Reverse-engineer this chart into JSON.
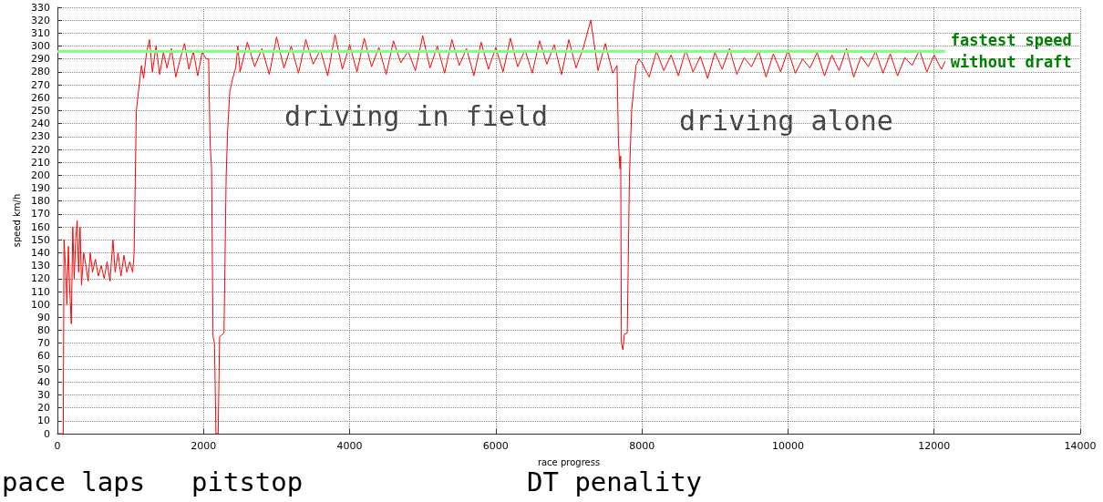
{
  "chart_data": {
    "type": "line",
    "xlabel": "race progress",
    "ylabel": "speed km/h",
    "x": [
      0,
      80,
      90,
      110,
      130,
      150,
      170,
      190,
      210,
      230,
      250,
      270,
      290,
      310,
      330,
      360,
      390,
      420,
      450,
      480,
      520,
      560,
      600,
      640,
      680,
      720,
      760,
      790,
      830,
      870,
      910,
      950,
      990,
      1030,
      1050,
      1080,
      1110,
      1150,
      1180,
      1220,
      1260,
      1300,
      1350,
      1400,
      1450,
      1500,
      1560,
      1620,
      1680,
      1740,
      1800,
      1860,
      1920,
      1980,
      2040,
      2070,
      2090,
      2110,
      2130,
      2150,
      2170,
      2200,
      2220,
      2280,
      2310,
      2330,
      2360,
      2400,
      2440,
      2470,
      2500,
      2600,
      2700,
      2800,
      2900,
      3000,
      3100,
      3200,
      3300,
      3400,
      3500,
      3600,
      3700,
      3800,
      3900,
      4000,
      4100,
      4200,
      4300,
      4400,
      4500,
      4600,
      4700,
      4800,
      4900,
      5000,
      5100,
      5200,
      5300,
      5400,
      5500,
      5600,
      5700,
      5800,
      5900,
      6000,
      6100,
      6200,
      6300,
      6400,
      6500,
      6600,
      6700,
      6800,
      6900,
      7000,
      7100,
      7200,
      7300,
      7400,
      7500,
      7600,
      7660,
      7680,
      7700,
      7710,
      7720,
      7740,
      7760,
      7800,
      7830,
      7860,
      7890,
      7920,
      7960,
      8000,
      8100,
      8200,
      8300,
      8400,
      8500,
      8600,
      8700,
      8800,
      8900,
      9000,
      9100,
      9200,
      9300,
      9400,
      9500,
      9600,
      9700,
      9800,
      9900,
      10000,
      10100,
      10200,
      10300,
      10400,
      10500,
      10600,
      10700,
      10800,
      10900,
      11000,
      11100,
      11200,
      11300,
      11400,
      11500,
      11600,
      11700,
      11800,
      11900,
      12000,
      12100,
      12150
    ],
    "series": [
      {
        "color": "#ff0000",
        "values": [
          0,
          0,
          150,
          130,
          100,
          145,
          110,
          85,
          160,
          120,
          150,
          165,
          125,
          160,
          115,
          140,
          130,
          118,
          140,
          125,
          135,
          122,
          130,
          120,
          133,
          118,
          150,
          125,
          140,
          122,
          138,
          125,
          133,
          125,
          140,
          250,
          265,
          285,
          275,
          295,
          305,
          280,
          300,
          278,
          295,
          283,
          298,
          276,
          290,
          302,
          282,
          296,
          277,
          295,
          290,
          290,
          225,
          205,
          75,
          70,
          0,
          0,
          75,
          78,
          200,
          235,
          265,
          275,
          283,
          300,
          280,
          303,
          284,
          298,
          278,
          307,
          283,
          300,
          279,
          305,
          286,
          297,
          277,
          309,
          282,
          301,
          280,
          306,
          284,
          299,
          278,
          304,
          287,
          296,
          281,
          308,
          283,
          300,
          279,
          305,
          285,
          298,
          277,
          303,
          282,
          299,
          280,
          306,
          284,
          297,
          279,
          304,
          286,
          301,
          278,
          305,
          283,
          299,
          320,
          281,
          302,
          279,
          285,
          225,
          205,
          215,
          70,
          65,
          77,
          78,
          200,
          250,
          268,
          285,
          290,
          287,
          276,
          296,
          281,
          293,
          277,
          297,
          280,
          292,
          275,
          295,
          282,
          298,
          278,
          291,
          284,
          296,
          276,
          294,
          280,
          297,
          279,
          290,
          283,
          295,
          277,
          293,
          281,
          298,
          276,
          292,
          284,
          296,
          279,
          294,
          277,
          291,
          285,
          297,
          280,
          293,
          282,
          288
        ]
      }
    ],
    "xlim": [
      0,
      14000
    ],
    "xticks": [
      0,
      2000,
      4000,
      6000,
      8000,
      10000,
      12000,
      14000
    ],
    "ylim": [
      0,
      330
    ],
    "yticks": [
      0,
      10,
      20,
      30,
      40,
      50,
      60,
      70,
      80,
      90,
      100,
      110,
      120,
      130,
      140,
      150,
      160,
      170,
      180,
      190,
      200,
      210,
      220,
      230,
      240,
      250,
      260,
      270,
      280,
      290,
      300,
      310,
      320,
      330
    ],
    "grid": true,
    "marker": "none",
    "line_style": "solid",
    "ref_lines": [
      {
        "axis": "y",
        "value": 296,
        "label": "fastest speed without draft",
        "color": "#80ff80"
      }
    ],
    "annotations": [
      "driving in field",
      "driving alone",
      "pace laps",
      "pitstop",
      "DT penality"
    ]
  }
}
